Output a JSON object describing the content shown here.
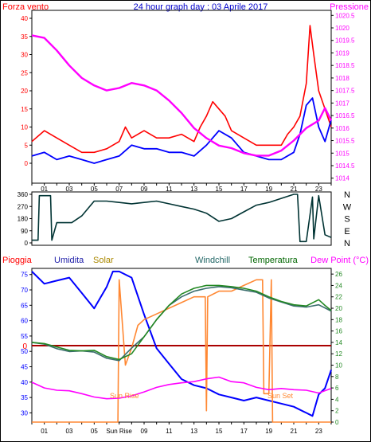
{
  "header": {
    "title": "24 hour graph day : 03 Aprile 2017",
    "left_label": "Forza vento",
    "right_label": "Pressione"
  },
  "colors": {
    "frame": "#000000",
    "gust": "#ff0000",
    "wind": "#0000ff",
    "pressure": "#ff00ff",
    "direction": "#003333",
    "rain": "#ff0000",
    "humidity": "#0000ff",
    "solar": "#ff8833",
    "windchill": "#3a6d6d",
    "temperature": "#228822",
    "dewpoint": "#ff00ff",
    "title": "#0000cc",
    "humid_label": "#2222aa",
    "solar_label": "#aa8800",
    "windchill_label": "#226666",
    "temp_label": "#006600"
  },
  "x_axis": {
    "ticks": [
      "01",
      "03",
      "05",
      "07",
      "09",
      "11",
      "13",
      "15",
      "17",
      "19",
      "21",
      "23"
    ],
    "bottom_ticks": [
      "01",
      "03",
      "05",
      "Sun Rise",
      "09",
      "11",
      "13",
      "15",
      "17",
      "19",
      "21",
      "23"
    ]
  },
  "chart_data": [
    {
      "type": "line",
      "name": "wind",
      "y_left": {
        "ticks": [
          "0",
          "5",
          "10",
          "15",
          "20",
          "25",
          "30",
          "35",
          "40"
        ],
        "range": [
          0,
          40
        ]
      },
      "y_right": {
        "ticks": [
          "1014",
          "1014.5",
          "1015",
          "1015.5",
          "1016",
          "1016.5",
          "1017",
          "1017.5",
          "1018",
          "1018.5",
          "1019",
          "1019.5",
          "1020",
          "1020.5"
        ],
        "range": [
          1013.8,
          1020.7
        ]
      },
      "series": [
        {
          "name": "Forza vento",
          "color": "#ff0000",
          "x": [
            0,
            1,
            2,
            3,
            4,
            5,
            6,
            7,
            7.5,
            8,
            9,
            10,
            11,
            12,
            13,
            13.5,
            14,
            14.5,
            15,
            15.5,
            16,
            17,
            18,
            19,
            20,
            20.5,
            21,
            21.5,
            22,
            22.3,
            22.6,
            23,
            23.5,
            24
          ],
          "y": [
            6,
            9,
            7,
            5,
            3,
            3,
            4,
            6,
            10,
            7,
            9,
            7,
            7,
            8,
            6,
            10,
            13,
            17,
            15,
            13,
            9,
            7,
            5,
            5,
            5,
            8,
            10,
            13,
            22,
            38,
            30,
            20,
            15,
            10
          ]
        },
        {
          "name": "Vento",
          "color": "#0000ff",
          "x": [
            0,
            1,
            2,
            3,
            4,
            5,
            6,
            7,
            8,
            9,
            10,
            11,
            12,
            13,
            14,
            15,
            16,
            17,
            18,
            19,
            20,
            21,
            21.5,
            22,
            22.5,
            23,
            23.5,
            24
          ],
          "y": [
            2,
            3,
            1,
            2,
            1,
            0,
            1,
            2,
            5,
            4,
            4,
            3,
            3,
            2,
            5,
            9,
            7,
            3,
            2,
            1,
            1,
            3,
            8,
            16,
            18,
            10,
            6,
            12
          ]
        },
        {
          "name": "Pressione",
          "color": "#ff00ff",
          "axis": "right",
          "x": [
            0,
            1,
            2,
            3,
            4,
            5,
            6,
            7,
            8,
            9,
            10,
            11,
            12,
            13,
            14,
            15,
            16,
            17,
            18,
            19,
            20,
            21,
            22,
            23,
            23.5,
            24
          ],
          "y": [
            1019.7,
            1019.6,
            1019.1,
            1018.5,
            1018.0,
            1017.7,
            1017.5,
            1017.6,
            1017.8,
            1017.7,
            1017.5,
            1017.1,
            1016.6,
            1016.0,
            1015.6,
            1015.3,
            1015.2,
            1015.0,
            1014.9,
            1014.9,
            1015.1,
            1015.5,
            1016.0,
            1016.3,
            1016.8,
            1016.3
          ]
        }
      ]
    },
    {
      "type": "line",
      "name": "wind-direction",
      "y_left": {
        "ticks": [
          "0",
          "90",
          "180",
          "270",
          "360"
        ],
        "range": [
          0,
          360
        ]
      },
      "y_right": {
        "ticks": [
          "N",
          "W",
          "S",
          "E",
          "N"
        ]
      },
      "series": [
        {
          "name": "Direzione",
          "color": "#003333",
          "x": [
            0,
            0.5,
            0.6,
            1,
            1.5,
            1.6,
            2,
            3,
            3.2,
            4,
            5,
            6,
            7,
            8,
            9,
            10,
            11,
            12,
            13,
            14,
            15,
            16,
            17,
            18,
            19,
            20,
            21,
            21.3,
            21.5,
            22,
            22.5,
            22.6,
            23,
            23.5,
            24
          ],
          "y": [
            20,
            20,
            350,
            350,
            350,
            20,
            150,
            150,
            150,
            200,
            310,
            310,
            300,
            290,
            300,
            310,
            290,
            270,
            250,
            220,
            160,
            180,
            230,
            280,
            300,
            330,
            360,
            360,
            10,
            10,
            340,
            30,
            350,
            60,
            40
          ]
        }
      ]
    },
    {
      "type": "line",
      "name": "climate",
      "y_left": {
        "ticks": [
          "30",
          "35",
          "40",
          "45",
          "50",
          "55",
          "60",
          "65",
          "70",
          "75"
        ],
        "range": [
          27,
          77
        ]
      },
      "y_right": {
        "ticks": [
          "0",
          "2",
          "4",
          "6",
          "8",
          "10",
          "12",
          "14",
          "16",
          "18",
          "20",
          "22",
          "24",
          "26"
        ],
        "range": [
          0,
          27
        ]
      },
      "labels": [
        "Pioggia",
        "Umidita",
        "Solar",
        "Windchill",
        "Temperatura",
        "Dew Point (°C)"
      ],
      "rain_zero_label": "0",
      "annotations": [
        "Sun Rise",
        "Sun Set"
      ],
      "series": [
        {
          "name": "Umidita",
          "color": "#0000ff",
          "x": [
            0,
            1,
            2,
            3,
            4,
            5,
            6,
            6.5,
            7,
            8,
            9,
            10,
            11,
            12,
            13,
            14,
            15,
            16,
            17,
            18,
            19,
            20,
            21,
            22,
            22.5,
            23,
            23.5,
            24
          ],
          "y": [
            76,
            72,
            73,
            74,
            69,
            64,
            71,
            76,
            76,
            74,
            62,
            51,
            46,
            41,
            39,
            38,
            36,
            35,
            34,
            35,
            34,
            33,
            32,
            30,
            29,
            36,
            38,
            44
          ]
        },
        {
          "name": "Solar",
          "color": "#ff8833",
          "axis": "right",
          "x": [
            0,
            6.9,
            7.0,
            7.5,
            8,
            8.5,
            9,
            10,
            11,
            12,
            13,
            13.9,
            14.0,
            14.1,
            15,
            16,
            17,
            18,
            18.5,
            18.6,
            18.7,
            19,
            19.2,
            19.3,
            24
          ],
          "y": [
            0,
            0,
            25,
            10,
            13,
            17,
            18,
            19,
            20,
            21,
            22,
            22,
            2,
            22,
            23,
            23,
            24,
            25,
            25,
            5,
            5,
            5,
            25,
            0,
            0
          ]
        },
        {
          "name": "Windchill",
          "color": "#3a6d6d",
          "axis": "right",
          "x": [
            0,
            1,
            2,
            3,
            4,
            5,
            6,
            7,
            8,
            9,
            10,
            11,
            12,
            13,
            14,
            15,
            16,
            17,
            18,
            19,
            20,
            21,
            22,
            23,
            24
          ],
          "y": [
            14,
            13.7,
            12.9,
            12.4,
            12.5,
            12.3,
            11.2,
            10.8,
            13,
            15,
            18,
            20.5,
            22,
            23,
            23.5,
            23.8,
            23.6,
            23.2,
            22.8,
            21.8,
            21.1,
            20.4,
            20.2,
            20.6,
            19.5
          ]
        },
        {
          "name": "Temperatura",
          "color": "#228822",
          "axis": "right",
          "x": [
            0,
            1,
            2,
            3,
            4,
            5,
            6,
            7,
            8,
            9,
            10,
            11,
            12,
            13,
            14,
            15,
            16,
            17,
            18,
            19,
            20,
            21,
            22,
            23,
            23.5,
            24
          ],
          "y": [
            14,
            13.8,
            13.2,
            12.6,
            12.5,
            12.6,
            11.5,
            11.0,
            12,
            15,
            18,
            20.5,
            22.5,
            23.5,
            24,
            24,
            23.8,
            23.5,
            23,
            22,
            21.2,
            20.6,
            20.4,
            21.5,
            20.5,
            19.6
          ]
        },
        {
          "name": "Dew Point",
          "color": "#ff00ff",
          "axis": "right",
          "x": [
            0,
            1,
            2,
            3,
            4,
            5,
            6,
            7,
            8,
            9,
            10,
            11,
            12,
            13,
            14,
            15,
            16,
            17,
            18,
            19,
            20,
            21,
            22,
            23,
            24
          ],
          "y": [
            7,
            6,
            5.6,
            5.5,
            5.0,
            4.4,
            4.1,
            4.2,
            4.6,
            5.3,
            6.1,
            6.6,
            6.9,
            7.1,
            7.6,
            7.9,
            7.1,
            6.9,
            6.1,
            5.7,
            5.9,
            5.7,
            5.6,
            5.1,
            5.9
          ]
        },
        {
          "name": "Pioggia",
          "color": "#ff0000",
          "x": [
            0,
            24
          ],
          "y": [
            0,
            0
          ]
        }
      ]
    }
  ]
}
